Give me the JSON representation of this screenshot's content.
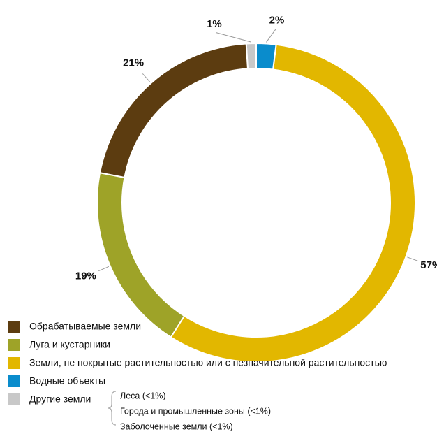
{
  "chart_data": {
    "type": "donut",
    "categories": [
      "Обрабатываемые земли",
      "Луга и кустарники",
      "Земли, не покрытые растительностью или с незначительной растительностью",
      "Водные объекты",
      "Другие земли"
    ],
    "values": [
      21,
      19,
      57,
      2,
      1
    ],
    "value_labels": [
      "21%",
      "19%",
      "57%",
      "2%",
      "1%"
    ],
    "colors": [
      "#5c3c10",
      "#9ea328",
      "#e2b700",
      "#0a8ccc",
      "#c8c8c8"
    ],
    "other_breakdown": [
      "Леса (<1%)",
      "Города и промышленные зоны (<1%)",
      "Заболоченные земли (<1%)"
    ]
  }
}
